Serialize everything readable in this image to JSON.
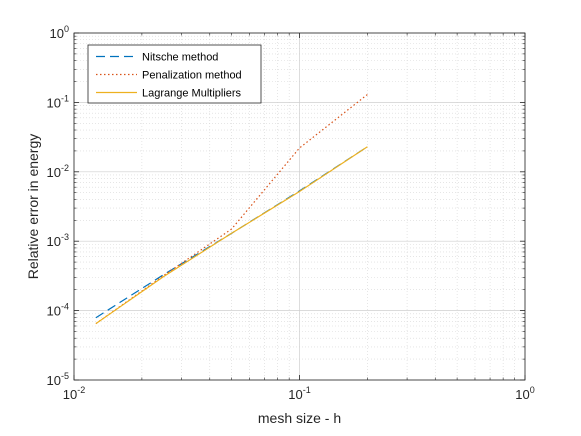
{
  "chart_data": {
    "type": "line",
    "title": "",
    "xlabel": "mesh size - h",
    "ylabel": "Relative error in energy",
    "xscale": "log",
    "yscale": "log",
    "xlim": [
      0.01,
      1
    ],
    "ylim": [
      1e-05,
      1
    ],
    "grid": true,
    "minor_grid": true,
    "legend_position": "top-left",
    "x_ticks": [
      {
        "value": 0.01,
        "base": "10",
        "exp": "-2"
      },
      {
        "value": 0.1,
        "base": "10",
        "exp": "-1"
      },
      {
        "value": 1,
        "base": "10",
        "exp": "0"
      }
    ],
    "y_ticks": [
      {
        "value": 1e-05,
        "base": "10",
        "exp": "-5"
      },
      {
        "value": 0.0001,
        "base": "10",
        "exp": "-4"
      },
      {
        "value": 0.001,
        "base": "10",
        "exp": "-3"
      },
      {
        "value": 0.01,
        "base": "10",
        "exp": "-2"
      },
      {
        "value": 0.1,
        "base": "10",
        "exp": "-1"
      },
      {
        "value": 1,
        "base": "10",
        "exp": "0"
      }
    ],
    "series": [
      {
        "name": "Nitsche method",
        "color": "#0072BD",
        "dash": "dashed",
        "x": [
          0.0125,
          0.025,
          0.05,
          0.1,
          0.2
        ],
        "y": [
          7.9e-05,
          0.00033,
          0.0013,
          0.0053,
          0.023
        ]
      },
      {
        "name": "Penalization method",
        "color": "#D95319",
        "dash": "dotted",
        "x": [
          0.0125,
          0.025,
          0.05,
          0.1,
          0.2
        ],
        "y": [
          6.5e-05,
          0.00032,
          0.0015,
          0.022,
          0.13
        ]
      },
      {
        "name": "Lagrange Multipliers",
        "color": "#EDB120",
        "dash": "solid",
        "x": [
          0.0125,
          0.025,
          0.05,
          0.1,
          0.2
        ],
        "y": [
          6.5e-05,
          0.00031,
          0.0013,
          0.0052,
          0.023
        ]
      }
    ]
  }
}
